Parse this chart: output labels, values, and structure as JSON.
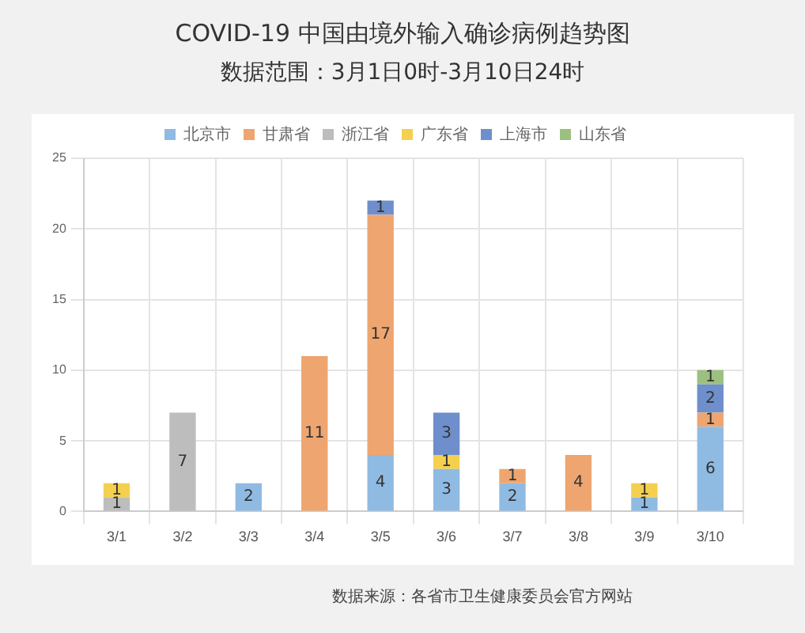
{
  "chart_data": {
    "type": "bar",
    "title": "COVID-19 中国由境外输入确诊病例趋势图",
    "subtitle": "数据范围：3月1日0时-3月10日24时",
    "categories": [
      "3/1",
      "3/2",
      "3/3",
      "3/4",
      "3/5",
      "3/6",
      "3/7",
      "3/8",
      "3/9",
      "3/10"
    ],
    "stacked": true,
    "data_labels": true,
    "legend": "top",
    "grid": true,
    "ylim": [
      0,
      25
    ],
    "yticks": [
      0,
      5,
      10,
      15,
      20,
      25
    ],
    "series": [
      {
        "name": "北京市",
        "color": "#8fbbe3",
        "values": [
          null,
          null,
          2,
          null,
          4,
          3,
          2,
          null,
          1,
          6
        ]
      },
      {
        "name": "甘肃省",
        "color": "#eea56f",
        "values": [
          null,
          null,
          null,
          11,
          17,
          null,
          1,
          4,
          null,
          1
        ]
      },
      {
        "name": "浙江省",
        "color": "#bdbdbd",
        "values": [
          1,
          7,
          null,
          null,
          null,
          null,
          null,
          null,
          null,
          null
        ]
      },
      {
        "name": "广东省",
        "color": "#f4d04e",
        "values": [
          1,
          null,
          null,
          null,
          null,
          1,
          null,
          null,
          1,
          null
        ]
      },
      {
        "name": "上海市",
        "color": "#6f8fcc",
        "values": [
          null,
          null,
          null,
          null,
          1,
          3,
          null,
          null,
          null,
          2
        ]
      },
      {
        "name": "山东省",
        "color": "#9cc07f",
        "values": [
          null,
          null,
          null,
          null,
          null,
          null,
          null,
          null,
          null,
          1
        ]
      }
    ],
    "annotations": [
      "数据来源：各省市卫生健康委员会官方网站"
    ]
  }
}
